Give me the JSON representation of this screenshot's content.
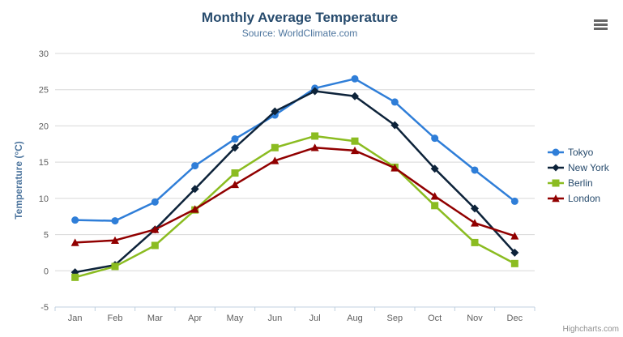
{
  "header": {
    "title": "Monthly Average Temperature",
    "subtitle": "Source: WorldClimate.com"
  },
  "icons": {
    "export_menu": "hamburger-icon"
  },
  "credits": {
    "label": "Highcharts.com"
  },
  "chart_data": {
    "type": "line",
    "title": "Monthly Average Temperature",
    "subtitle": "Source: WorldClimate.com",
    "categories": [
      "Jan",
      "Feb",
      "Mar",
      "Apr",
      "May",
      "Jun",
      "Jul",
      "Aug",
      "Sep",
      "Oct",
      "Nov",
      "Dec"
    ],
    "series": [
      {
        "name": "Tokyo",
        "color": "#2f7ed8",
        "marker": "circle",
        "values": [
          7.0,
          6.9,
          9.5,
          14.5,
          18.2,
          21.5,
          25.2,
          26.5,
          23.3,
          18.3,
          13.9,
          9.6
        ]
      },
      {
        "name": "New York",
        "color": "#0d233a",
        "marker": "diamond",
        "values": [
          -0.2,
          0.8,
          5.7,
          11.3,
          17.0,
          22.0,
          24.8,
          24.1,
          20.1,
          14.1,
          8.6,
          2.5
        ]
      },
      {
        "name": "Berlin",
        "color": "#8bbc21",
        "marker": "square",
        "values": [
          -0.9,
          0.6,
          3.5,
          8.4,
          13.5,
          17.0,
          18.6,
          17.9,
          14.3,
          9.0,
          3.9,
          1.0
        ]
      },
      {
        "name": "London",
        "color": "#910000",
        "marker": "triangle",
        "values": [
          3.9,
          4.2,
          5.7,
          8.5,
          11.9,
          15.2,
          17.0,
          16.6,
          14.2,
          10.3,
          6.6,
          4.8
        ]
      }
    ],
    "xlabel": "",
    "ylabel": "Temperature (°C)",
    "ylim": [
      -5,
      30
    ],
    "ytick_interval": 5,
    "grid": true,
    "legend_position": "right",
    "colors": {
      "title": "#274b6d",
      "subtitle": "#4d759e",
      "axis_labels": "#606060",
      "axis_title": "#4d759e",
      "gridline": "#d8d8d8",
      "axis_line": "#c0d0e0",
      "legend_text": "#274b6d",
      "credits_text": "#909090"
    }
  }
}
